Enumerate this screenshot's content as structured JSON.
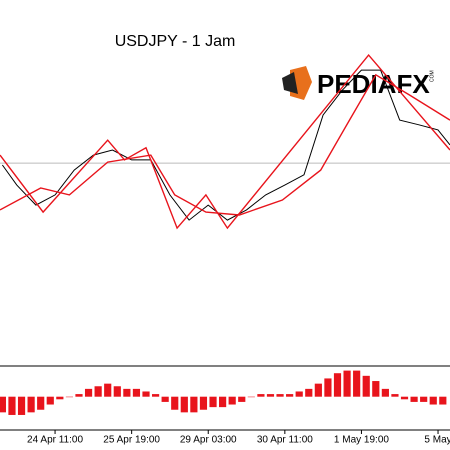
{
  "chart_data": [
    {
      "type": "line",
      "title": "USDJPY - 1 Jam",
      "logo": "PEDIAFX",
      "logo_suffix": "COM",
      "xlim": [
        -23,
        165
      ],
      "ylim": [
        0,
        100
      ],
      "price_line": 55.3,
      "series": [
        {
          "color": "#000000",
          "x": [
            -22,
            -16,
            -8,
            0,
            8,
            16,
            24,
            32,
            40,
            48,
            56,
            64,
            72,
            80,
            88,
            96,
            104,
            112,
            120,
            128,
            136,
            144,
            152,
            160,
            165
          ],
          "values": [
            54.8,
            49.3,
            43.8,
            46.6,
            53.4,
            57.5,
            58.9,
            56.2,
            56.2,
            46.6,
            39.7,
            43.8,
            39.7,
            42.5,
            46.6,
            49.3,
            52.1,
            68.5,
            75.3,
            80.8,
            80.8,
            67.1,
            65.8,
            64.4,
            60.3
          ]
        },
        {
          "color": "#e8141c",
          "x": [
            -23,
            -5,
            22,
            29,
            38,
            51,
            63,
            72,
            131,
            165
          ],
          "values": [
            57.5,
            41.9,
            61.6,
            56.2,
            59.5,
            37.5,
            46.6,
            37.5,
            84.9,
            58.9
          ]
        },
        {
          "color": "#e8141c",
          "x": [
            -23,
            -6,
            6,
            22,
            40,
            50,
            63,
            77,
            95,
            111,
            123,
            134,
            148,
            165
          ],
          "values": [
            42.5,
            48.5,
            46.6,
            55.6,
            57.5,
            46.6,
            41.9,
            41.1,
            45.2,
            53.4,
            67.1,
            79.5,
            74.0,
            67.1
          ]
        }
      ]
    },
    {
      "type": "bar",
      "color": "#e8141c",
      "xlim": [
        -23,
        165
      ],
      "ylim": [
        -1.2,
        1.1
      ],
      "x": [
        -22,
        -18,
        -14,
        -10,
        -6,
        -2,
        2,
        6,
        10,
        14,
        18,
        22,
        26,
        30,
        34,
        38,
        42,
        46,
        50,
        54,
        58,
        62,
        66,
        70,
        74,
        78,
        82,
        86,
        90,
        94,
        98,
        102,
        106,
        110,
        114,
        118,
        122,
        126,
        130,
        134,
        138,
        142,
        146,
        150,
        154,
        158,
        162
      ],
      "values": [
        -0.6,
        -0.7,
        -0.7,
        -0.6,
        -0.5,
        -0.3,
        -0.1,
        0.0,
        0.1,
        0.3,
        0.4,
        0.5,
        0.4,
        0.3,
        0.3,
        0.2,
        0.1,
        -0.2,
        -0.5,
        -0.6,
        -0.6,
        -0.5,
        -0.4,
        -0.4,
        -0.3,
        -0.2,
        0.0,
        0.1,
        0.1,
        0.1,
        0.1,
        0.2,
        0.3,
        0.5,
        0.7,
        0.9,
        1.0,
        1.0,
        0.8,
        0.6,
        0.3,
        0.1,
        -0.1,
        -0.2,
        -0.2,
        -0.3,
        -0.3
      ],
      "xticks": [
        {
          "value": 0,
          "label": "24 Apr 11:00"
        },
        {
          "value": 32,
          "label": "25 Apr 19:00"
        },
        {
          "value": 64,
          "label": "29 Apr 03:00"
        },
        {
          "value": 96,
          "label": "30 Apr 11:00"
        },
        {
          "value": 128,
          "label": "1 May 19:00"
        },
        {
          "value": 160,
          "label": "5 May"
        }
      ]
    }
  ]
}
